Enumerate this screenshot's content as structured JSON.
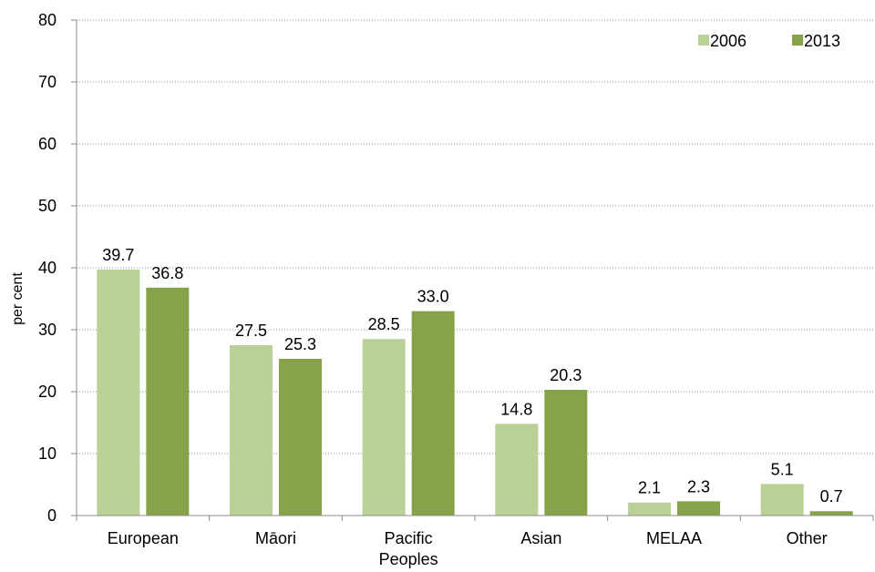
{
  "chart_data": {
    "type": "bar",
    "categories": [
      [
        "European"
      ],
      [
        "Māori"
      ],
      [
        "Pacific",
        "Peoples"
      ],
      [
        "Asian"
      ],
      [
        "MELAA"
      ],
      [
        "Other"
      ]
    ],
    "series": [
      {
        "name": "2006",
        "color": "#b9d197",
        "values": [
          39.7,
          27.5,
          28.5,
          14.8,
          2.1,
          5.1
        ],
        "labels": [
          "39.7",
          "27.5",
          "28.5",
          "14.8",
          "2.1",
          "5.1"
        ]
      },
      {
        "name": "2013",
        "color": "#87a34a",
        "values": [
          36.8,
          25.3,
          33.0,
          20.3,
          2.3,
          0.7
        ],
        "labels": [
          "36.8",
          "25.3",
          "33.0",
          "20.3",
          "2.3",
          "0.7"
        ]
      }
    ],
    "ylabel": "per cent",
    "ylim": [
      0,
      80
    ],
    "yticks": [
      "0",
      "10",
      "20",
      "30",
      "40",
      "50",
      "60",
      "70",
      "80"
    ],
    "grid": true,
    "legend_position": "top-right"
  }
}
